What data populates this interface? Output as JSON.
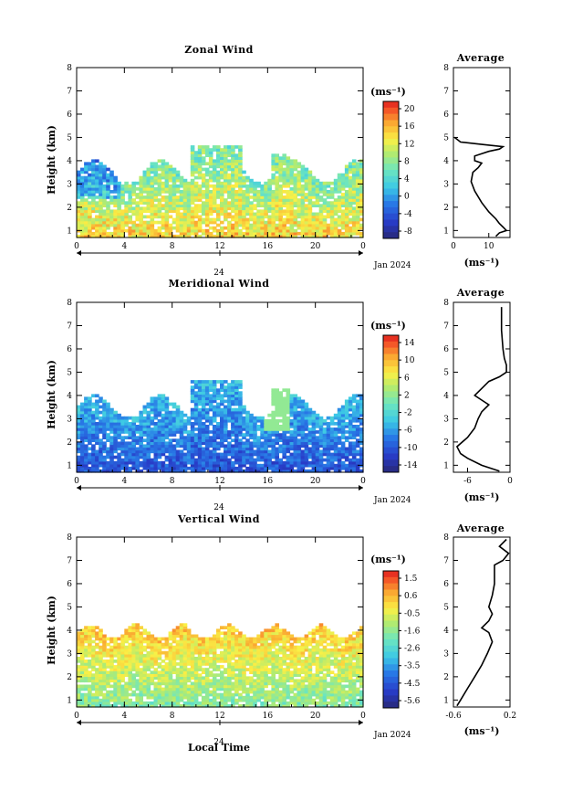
{
  "chart_data": [
    {
      "type": "heatmap",
      "title": "Zonal Wind",
      "ylabel": "Height (km)",
      "xlabel": "",
      "x_ticks": [
        "0",
        "4",
        "8",
        "12",
        "16",
        "20",
        "0"
      ],
      "y_ticks": [
        "1",
        "2",
        "3",
        "4",
        "5",
        "6",
        "7",
        "8"
      ],
      "xlim": [
        0,
        24
      ],
      "ylim": [
        0.7,
        8
      ],
      "date_marker": "24",
      "date_label": "Jan 2024",
      "colorbar": {
        "unit": "(ms⁻¹)",
        "ticks": [
          "20",
          "16",
          "12",
          "8",
          "4",
          "0",
          "-4",
          "-8"
        ],
        "range": [
          -10,
          22
        ]
      },
      "profile": {
        "title": "Average",
        "x_ticks": [
          "0",
          "10"
        ],
        "xlim": [
          0,
          16
        ],
        "unit": "(ms⁻¹)",
        "points": [
          [
            12,
            0.75
          ],
          [
            13,
            0.9
          ],
          [
            15,
            1.0
          ],
          [
            14,
            1.15
          ],
          [
            13,
            1.3
          ],
          [
            12,
            1.5
          ],
          [
            10,
            1.8
          ],
          [
            8,
            2.2
          ],
          [
            6,
            2.7
          ],
          [
            5,
            3.1
          ],
          [
            5.5,
            3.5
          ],
          [
            7,
            3.7
          ],
          [
            8,
            3.9
          ],
          [
            6,
            4.0
          ],
          [
            6,
            4.2
          ],
          [
            8,
            4.3
          ],
          [
            10,
            4.4
          ],
          [
            13,
            4.5
          ],
          [
            14,
            4.6
          ],
          [
            8,
            4.7
          ],
          [
            2,
            4.8
          ],
          [
            0.3,
            5.0
          ]
        ]
      },
      "field": {
        "v_low": 14,
        "v_high": 6,
        "v_min": -6,
        "v_max": 20
      }
    },
    {
      "type": "heatmap",
      "title": "Meridional Wind",
      "ylabel": "Height (km)",
      "xlabel": "",
      "x_ticks": [
        "0",
        "4",
        "8",
        "12",
        "16",
        "20",
        "0"
      ],
      "y_ticks": [
        "1",
        "2",
        "3",
        "4",
        "5",
        "6",
        "7",
        "8"
      ],
      "xlim": [
        0,
        24
      ],
      "ylim": [
        0.7,
        8
      ],
      "date_marker": "24",
      "date_label": "Jan 2024",
      "colorbar": {
        "unit": "(ms⁻¹)",
        "ticks": [
          "14",
          "10",
          "6",
          "2",
          "-2",
          "-6",
          "-10",
          "-14"
        ],
        "range": [
          -16,
          16
        ]
      },
      "profile": {
        "title": "Average",
        "x_ticks": [
          "-6",
          "0"
        ],
        "xlim": [
          -8,
          0
        ],
        "unit": "(ms⁻¹)",
        "points": [
          [
            -1.5,
            0.75
          ],
          [
            -4,
            1.0
          ],
          [
            -6,
            1.3
          ],
          [
            -7,
            1.5
          ],
          [
            -7.5,
            1.8
          ],
          [
            -6,
            2.2
          ],
          [
            -5,
            2.6
          ],
          [
            -4.5,
            3.0
          ],
          [
            -4,
            3.3
          ],
          [
            -3,
            3.6
          ],
          [
            -4,
            3.8
          ],
          [
            -5,
            4.0
          ],
          [
            -4,
            4.3
          ],
          [
            -3,
            4.6
          ],
          [
            -1.5,
            4.8
          ],
          [
            -0.5,
            5.0
          ],
          [
            -0.5,
            5.3
          ],
          [
            -0.8,
            5.6
          ],
          [
            -1,
            6.0
          ],
          [
            -1.2,
            6.8
          ],
          [
            -1.2,
            7.8
          ]
        ]
      },
      "field": {
        "v_low": -11,
        "v_high": -5,
        "v_min": -16,
        "v_max": 2
      }
    },
    {
      "type": "heatmap",
      "title": "Vertical Wind",
      "ylabel": "Height (km)",
      "xlabel": "Local Time",
      "x_ticks": [
        "0",
        "4",
        "8",
        "12",
        "16",
        "20",
        "0"
      ],
      "y_ticks": [
        "1",
        "2",
        "3",
        "4",
        "5",
        "6",
        "7",
        "8"
      ],
      "xlim": [
        0,
        24
      ],
      "ylim": [
        0.7,
        8
      ],
      "date_marker": "24",
      "date_label": "Jan 2024",
      "colorbar": {
        "unit": "(ms⁻¹)",
        "ticks": [
          "1.5",
          "0.6",
          "-0.5",
          "-1.6",
          "-2.6",
          "-3.5",
          "-4.5",
          "-5.6"
        ],
        "range": [
          -6,
          2
        ]
      },
      "profile": {
        "title": "Average",
        "x_ticks": [
          "-0.6",
          "0.2"
        ],
        "xlim": [
          -0.6,
          0.2
        ],
        "unit": "(ms⁻¹)",
        "points": [
          [
            -0.55,
            0.75
          ],
          [
            -0.5,
            1.0
          ],
          [
            -0.4,
            1.5
          ],
          [
            -0.3,
            2.0
          ],
          [
            -0.2,
            2.5
          ],
          [
            -0.12,
            3.0
          ],
          [
            -0.05,
            3.5
          ],
          [
            -0.1,
            3.9
          ],
          [
            -0.2,
            4.1
          ],
          [
            -0.1,
            4.4
          ],
          [
            -0.05,
            4.7
          ],
          [
            -0.1,
            5.0
          ],
          [
            -0.05,
            5.5
          ],
          [
            -0.02,
            6.0
          ],
          [
            -0.02,
            6.8
          ],
          [
            0.1,
            7.0
          ],
          [
            0.18,
            7.3
          ],
          [
            0.05,
            7.6
          ],
          [
            0.15,
            7.9
          ]
        ]
      },
      "field": {
        "v_low": -1.8,
        "v_high": 0.2,
        "v_min": -3.5,
        "v_max": 1.2
      }
    }
  ]
}
